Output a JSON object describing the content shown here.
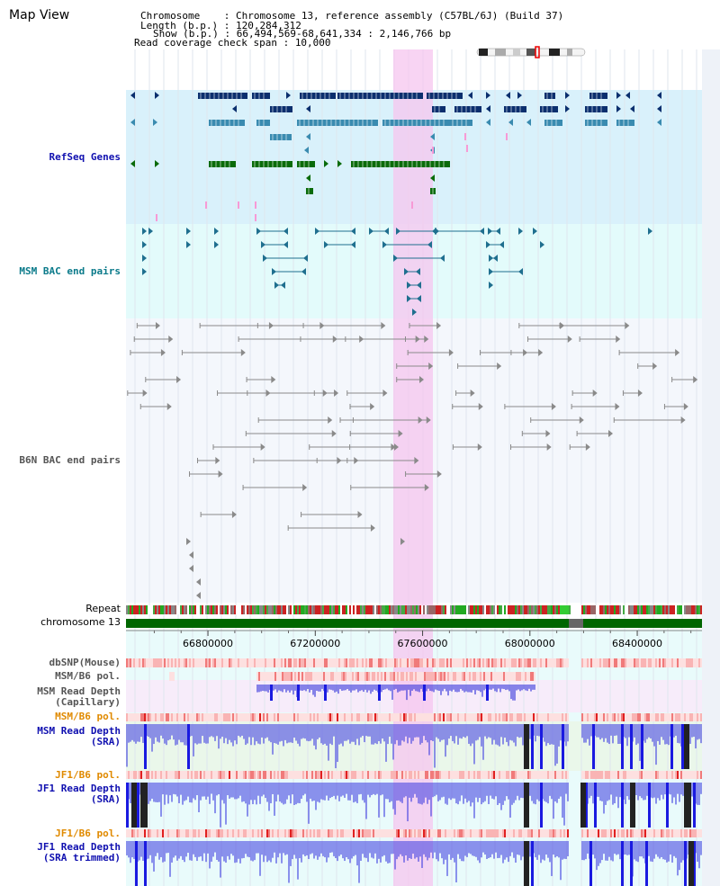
{
  "title": "Map View",
  "header": {
    "chromosome_label": "Chromosome    : ",
    "chromosome_value": "Chromosome 13, reference assembly (C57BL/6J) (Build 37)",
    "length_label": "Length (b.p.) : ",
    "length_value": "120,284,312",
    "show_label": "Show (b.p.) : ",
    "show_value": "66,494,569-68,641,334 : 2,146,766 bp",
    "span_label": "Read coverage check span : ",
    "span_value": "10,000"
  },
  "tracks": {
    "refseq": "RefSeq Genes",
    "msm_bac": "MSM BAC end pairs",
    "b6n_bac": "B6N BAC end pairs",
    "repeat": "Repeat",
    "chromosome": "chromosome 13",
    "dbsnp": "dbSNP(Mouse)",
    "msm_b6_pol_1": "MSM/B6 pol.",
    "msm_depth_cap_1": "MSM Read Depth",
    "msm_depth_cap_2": "(Capillary)",
    "msm_b6_pol_2": "MSM/B6 pol.",
    "msm_depth_sra_1": "MSM Read Depth",
    "msm_depth_sra_2": "(SRA)",
    "jf1_b6_pol_1": "JF1/B6 pol.",
    "jf1_depth_sra_1": "JF1 Read Depth",
    "jf1_depth_sra_2": "(SRA)",
    "jf1_b6_pol_2": "JF1/B6 pol.",
    "jf1_depth_trim_1": "JF1 Read Depth",
    "jf1_depth_trim_2": "(SRA trimmed)"
  },
  "axis": {
    "start_bp": 66494569,
    "end_bp": 68641334,
    "ticks": [
      {
        "label": "66800000",
        "value": 66800000
      },
      {
        "label": "67200000",
        "value": 67200000
      },
      {
        "label": "67600000",
        "value": 67600000
      },
      {
        "label": "68000000",
        "value": 68000000
      },
      {
        "label": "68400000",
        "value": 68400000
      }
    ]
  },
  "colors": {
    "refseq_bg": "#d9f1fb",
    "msm_bg": "#e3fbfb",
    "b6n_bg": "#f4f7fc",
    "highlight": "#f9d6f2",
    "gene_dark": "#0b2f6e",
    "gene_light": "#3a8bb0",
    "gene_green": "#0a6b0a",
    "bac": "#1f6f8f",
    "b6n": "#888888",
    "depth": "#2a2ad8",
    "chrom_green": "#006600"
  }
}
